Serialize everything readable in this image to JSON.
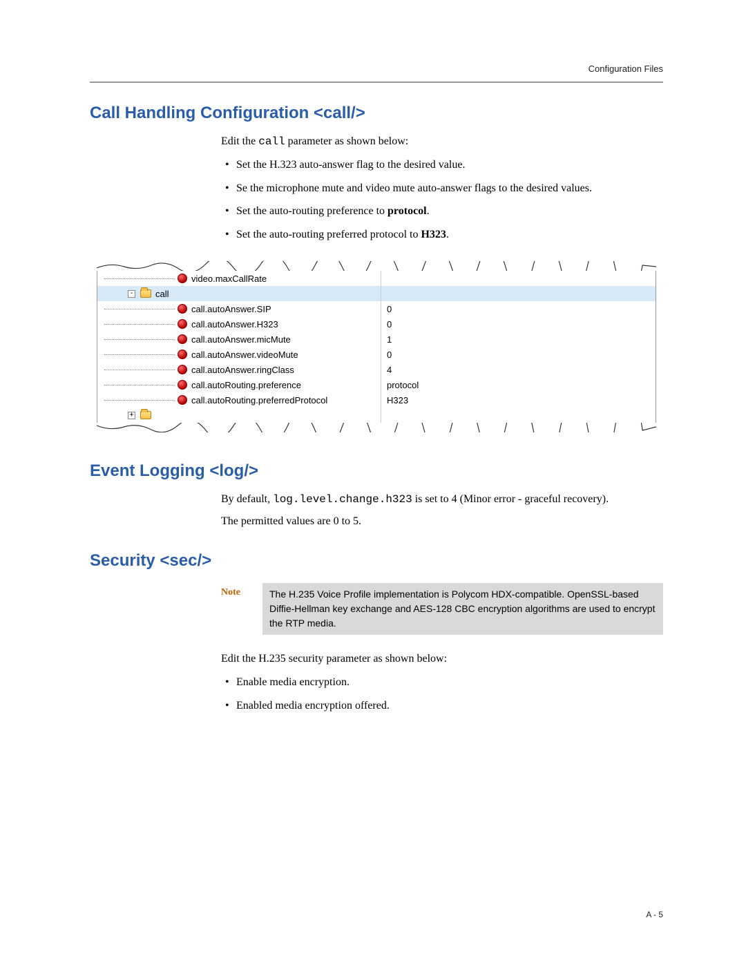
{
  "header": {
    "right": "Configuration Files"
  },
  "footer": {
    "page": "A - 5"
  },
  "sections": {
    "call": {
      "heading": "Call Handling Configuration <call/>",
      "intro_prefix": "Edit the ",
      "intro_code": "call",
      "intro_suffix": " parameter as shown below:",
      "bullets": [
        {
          "text": "Set the H.323 auto-answer flag to the desired value."
        },
        {
          "text": "Se the microphone mute and video mute auto-answer flags to the desired values."
        },
        {
          "prefix": "Set the auto-routing preference to ",
          "bold": "protocol",
          "suffix": "."
        },
        {
          "prefix": "Set the auto-routing preferred protocol to ",
          "bold": "H323",
          "suffix": "."
        }
      ]
    },
    "log": {
      "heading": "Event Logging <log/>",
      "p1_prefix": "By default, ",
      "p1_code": "log.level.change.h323",
      "p1_suffix": " is set to 4 (Minor error - graceful recovery).",
      "p2": "The permitted values are 0 to 5."
    },
    "sec": {
      "heading": "Security <sec/>",
      "note_label": "Note",
      "note_text": "The H.235 Voice Profile implementation is Polycom HDX-compatible. OpenSSL-based Diffie-Hellman key exchange and AES-128 CBC encryption algorithms are used to encrypt the RTP media.",
      "p1": "Edit the H.235 security parameter as shown below:",
      "bullets": [
        "Enable media encryption.",
        "Enabled media encryption offered."
      ]
    }
  },
  "tree": {
    "colors": {
      "selected_bg": "#d7e9f7",
      "key_col_width": 410,
      "leaf_icon_fill": "#b40000",
      "folder_fill": "#f3c04a",
      "torn_stroke": "#333333"
    },
    "rows": [
      {
        "depth": 3,
        "type": "leaf",
        "key": "video.maxCallRate",
        "val": "",
        "torn_top": true
      },
      {
        "depth": 1,
        "type": "folder",
        "key": "call",
        "val": "",
        "expander": "-",
        "selected": true
      },
      {
        "depth": 3,
        "type": "leaf",
        "key": "call.autoAnswer.SIP",
        "val": "0"
      },
      {
        "depth": 3,
        "type": "leaf",
        "key": "call.autoAnswer.H323",
        "val": "0"
      },
      {
        "depth": 3,
        "type": "leaf",
        "key": "call.autoAnswer.micMute",
        "val": "1"
      },
      {
        "depth": 3,
        "type": "leaf",
        "key": "call.autoAnswer.videoMute",
        "val": "0"
      },
      {
        "depth": 3,
        "type": "leaf",
        "key": "call.autoAnswer.ringClass",
        "val": "4"
      },
      {
        "depth": 3,
        "type": "leaf",
        "key": "call.autoRouting.preference",
        "val": "protocol"
      },
      {
        "depth": 3,
        "type": "leaf",
        "key": "call.autoRouting.preferredProtocol",
        "val": "H323"
      },
      {
        "depth": 1,
        "type": "folder_collapsed",
        "key": "",
        "val": "",
        "expander": "+",
        "torn_bot": true
      }
    ]
  }
}
